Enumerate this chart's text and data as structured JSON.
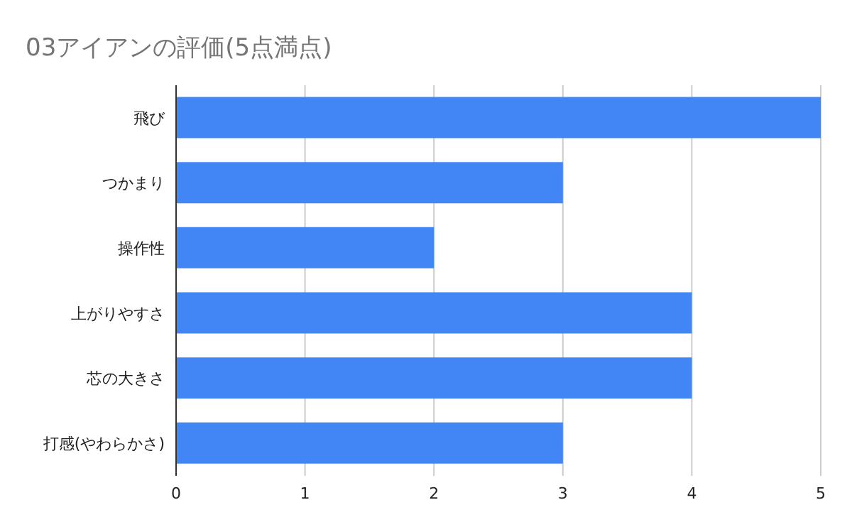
{
  "chart_data": {
    "type": "bar",
    "orientation": "horizontal",
    "title": "03アイアンの評価(5点満点)",
    "categories": [
      "飛び",
      "つかまり",
      "操作性",
      "上がりやすさ",
      "芯の大きさ",
      "打感(やわらかさ)"
    ],
    "values": [
      5,
      3,
      2,
      4,
      4,
      3
    ],
    "color": "#4285f4",
    "xlim": [
      0,
      5
    ],
    "xticks": [
      0,
      1,
      2,
      3,
      4,
      5
    ],
    "grid": "x"
  }
}
